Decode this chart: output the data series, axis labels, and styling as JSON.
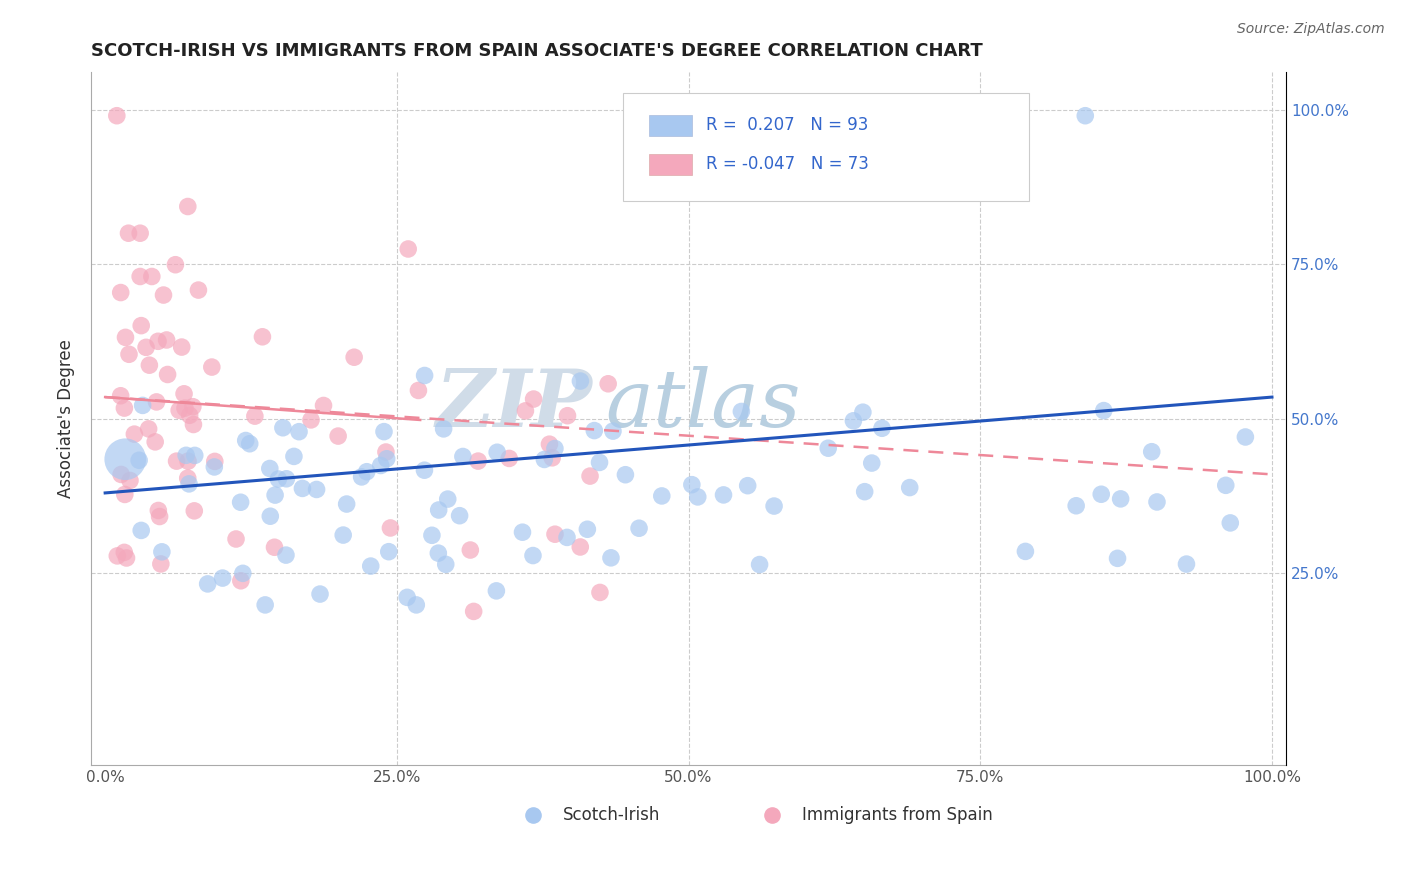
{
  "title": "SCOTCH-IRISH VS IMMIGRANTS FROM SPAIN ASSOCIATE'S DEGREE CORRELATION CHART",
  "source": "Source: ZipAtlas.com",
  "ylabel": "Associate's Degree",
  "right_ytick_labels": [
    "25.0%",
    "50.0%",
    "75.0%",
    "100.0%"
  ],
  "right_ytick_values": [
    0.25,
    0.5,
    0.75,
    1.0
  ],
  "xtick_labels": [
    "0.0%",
    "25.0%",
    "50.0%",
    "75.0%",
    "100.0%"
  ],
  "xtick_values": [
    0.0,
    0.25,
    0.5,
    0.75,
    1.0
  ],
  "blue_R": 0.207,
  "blue_N": 93,
  "pink_R": -0.047,
  "pink_N": 73,
  "blue_color": "#a8c8f0",
  "pink_color": "#f4a8bc",
  "blue_line_color": "#2255bb",
  "pink_line_color": "#ee8899",
  "watermark_color": "#d0dce8",
  "legend_label_blue": "Scotch-Irish",
  "legend_label_pink": "Immigrants from Spain"
}
